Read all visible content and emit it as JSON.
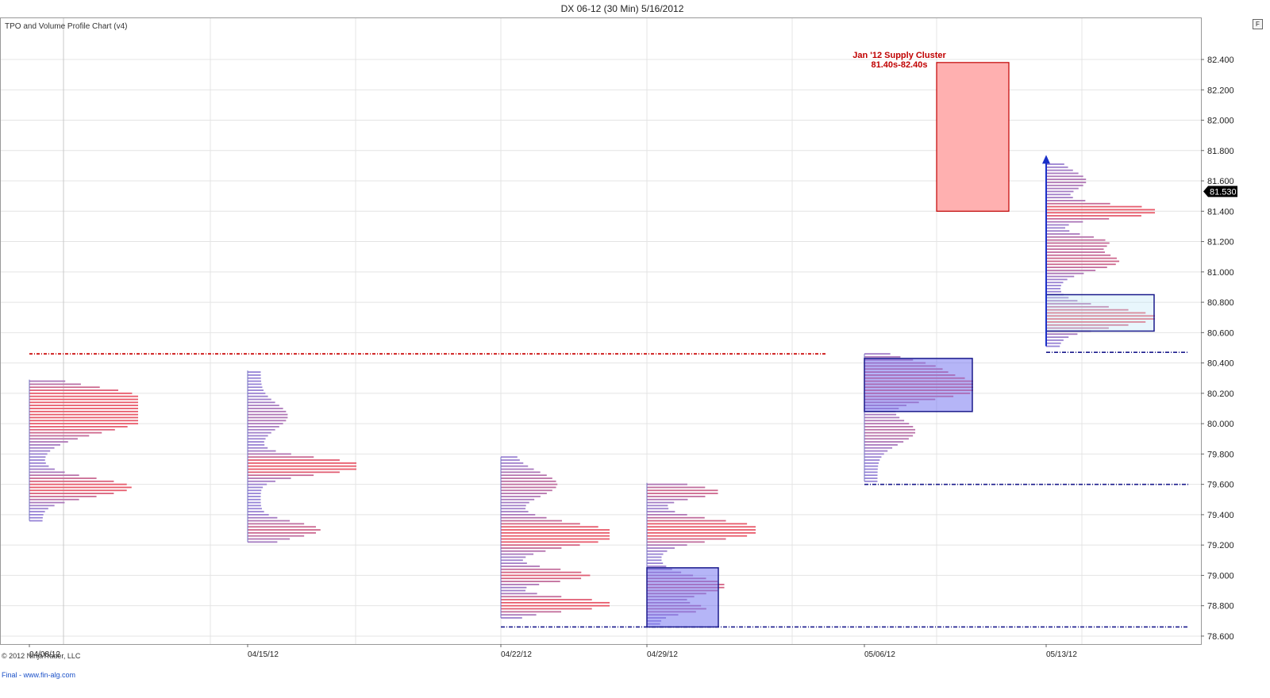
{
  "window": {
    "title": "DX 06-12 (30 Min)  5/16/2012",
    "button_label": "F"
  },
  "indicator_label": "TPO and Volume Profile Chart (v4)",
  "copyright": "© 2012 NinjaTrader, LLC",
  "footer_note": "Final - www.fin-alg.com",
  "colors": {
    "grid": "#e4e4e4",
    "profile_low": "#8a8ae8",
    "profile_high": "#e85a6a",
    "value_area_fill": "#9c9cf2",
    "value_area_stroke": "#1a1a8c",
    "supply_fill": "#ffb0b0",
    "supply_stroke": "#c00000",
    "red_line": "#d02020",
    "blue_line": "#1a1a8c",
    "price_tag_bg": "#000000"
  },
  "chart_data": {
    "type": "volume_profile",
    "title": "DX 06-12 (30 Min)  5/16/2012",
    "x_dates": [
      "04/08/12",
      "04/15/12",
      "04/22/12",
      "04/29/12",
      "05/06/12",
      "05/13/12"
    ],
    "y_ticks": [
      "82.400",
      "82.200",
      "82.000",
      "81.800",
      "81.600",
      "81.400",
      "81.200",
      "81.000",
      "80.800",
      "80.600",
      "80.400",
      "80.200",
      "80.000",
      "79.800",
      "79.600",
      "79.400",
      "79.200",
      "79.000",
      "78.800",
      "78.600"
    ],
    "ylim": [
      78.55,
      82.6
    ],
    "last_price": "81.530",
    "grid": true,
    "profiles": [
      {
        "period": "04/08/12",
        "low": 79.36,
        "high": 80.29,
        "peaks": [
          {
            "price": 80.05,
            "len": 1.0,
            "width": 0.1
          },
          {
            "price": 79.58,
            "len": 0.82,
            "width": 0.06
          },
          {
            "price": 80.2,
            "len": 0.5,
            "width": 0.05
          }
        ]
      },
      {
        "period": "04/15/12",
        "low": 79.22,
        "high": 80.35,
        "peaks": [
          {
            "price": 79.72,
            "len": 1.0,
            "width": 0.05
          },
          {
            "price": 79.3,
            "len": 0.55,
            "width": 0.05
          },
          {
            "price": 80.05,
            "len": 0.25,
            "width": 0.08
          }
        ]
      },
      {
        "period": "04/22/12",
        "low": 78.72,
        "high": 79.78,
        "peaks": [
          {
            "price": 79.27,
            "len": 1.0,
            "width": 0.07
          },
          {
            "price": 78.81,
            "len": 0.95,
            "width": 0.04
          },
          {
            "price": 79.0,
            "len": 0.7,
            "width": 0.04
          },
          {
            "price": 79.6,
            "len": 0.4,
            "width": 0.08
          }
        ]
      },
      {
        "period": "04/29/12",
        "low": 78.68,
        "high": 79.61,
        "peaks": [
          {
            "price": 79.3,
            "len": 1.0,
            "width": 0.06
          },
          {
            "price": 78.93,
            "len": 0.6,
            "width": 0.06
          },
          {
            "price": 78.78,
            "len": 0.4,
            "width": 0.03
          },
          {
            "price": 79.55,
            "len": 0.55,
            "width": 0.04
          }
        ]
      },
      {
        "period": "05/06/12",
        "low": 79.62,
        "high": 80.46,
        "peaks": [
          {
            "price": 80.24,
            "len": 1.0,
            "width": 0.07
          },
          {
            "price": 80.38,
            "len": 0.4,
            "width": 0.05
          },
          {
            "price": 79.95,
            "len": 0.35,
            "width": 0.08
          }
        ]
      },
      {
        "period": "05/13/12",
        "low": 80.51,
        "high": 81.72,
        "peaks": [
          {
            "price": 81.4,
            "len": 1.0,
            "width": 0.04
          },
          {
            "price": 80.7,
            "len": 0.9,
            "width": 0.06
          },
          {
            "price": 81.07,
            "len": 0.55,
            "width": 0.06
          },
          {
            "price": 81.2,
            "len": 0.4,
            "width": 0.04
          },
          {
            "price": 81.6,
            "len": 0.25,
            "width": 0.06
          }
        ]
      }
    ],
    "value_area_boxes": [
      {
        "period": "04/29/12",
        "from": 78.66,
        "to": 79.05
      },
      {
        "period": "05/06/12",
        "from": 80.08,
        "to": 80.43
      },
      {
        "period": "05/13/12",
        "from": 80.61,
        "to": 80.85
      }
    ],
    "supply_zone": {
      "from": 81.4,
      "to": 82.38,
      "label_line1": "Jan '12 Supply Cluster",
      "label_line2": "81.40s-82.40s"
    },
    "red_level": 80.46,
    "blue_levels": [
      {
        "price": 78.66,
        "from_period": "04/22/12"
      },
      {
        "price": 79.6,
        "from_period": "05/06/12"
      },
      {
        "price": 80.47,
        "from_period": "05/13/12"
      }
    ],
    "arrow": {
      "from": 80.51,
      "to": 81.76
    }
  }
}
